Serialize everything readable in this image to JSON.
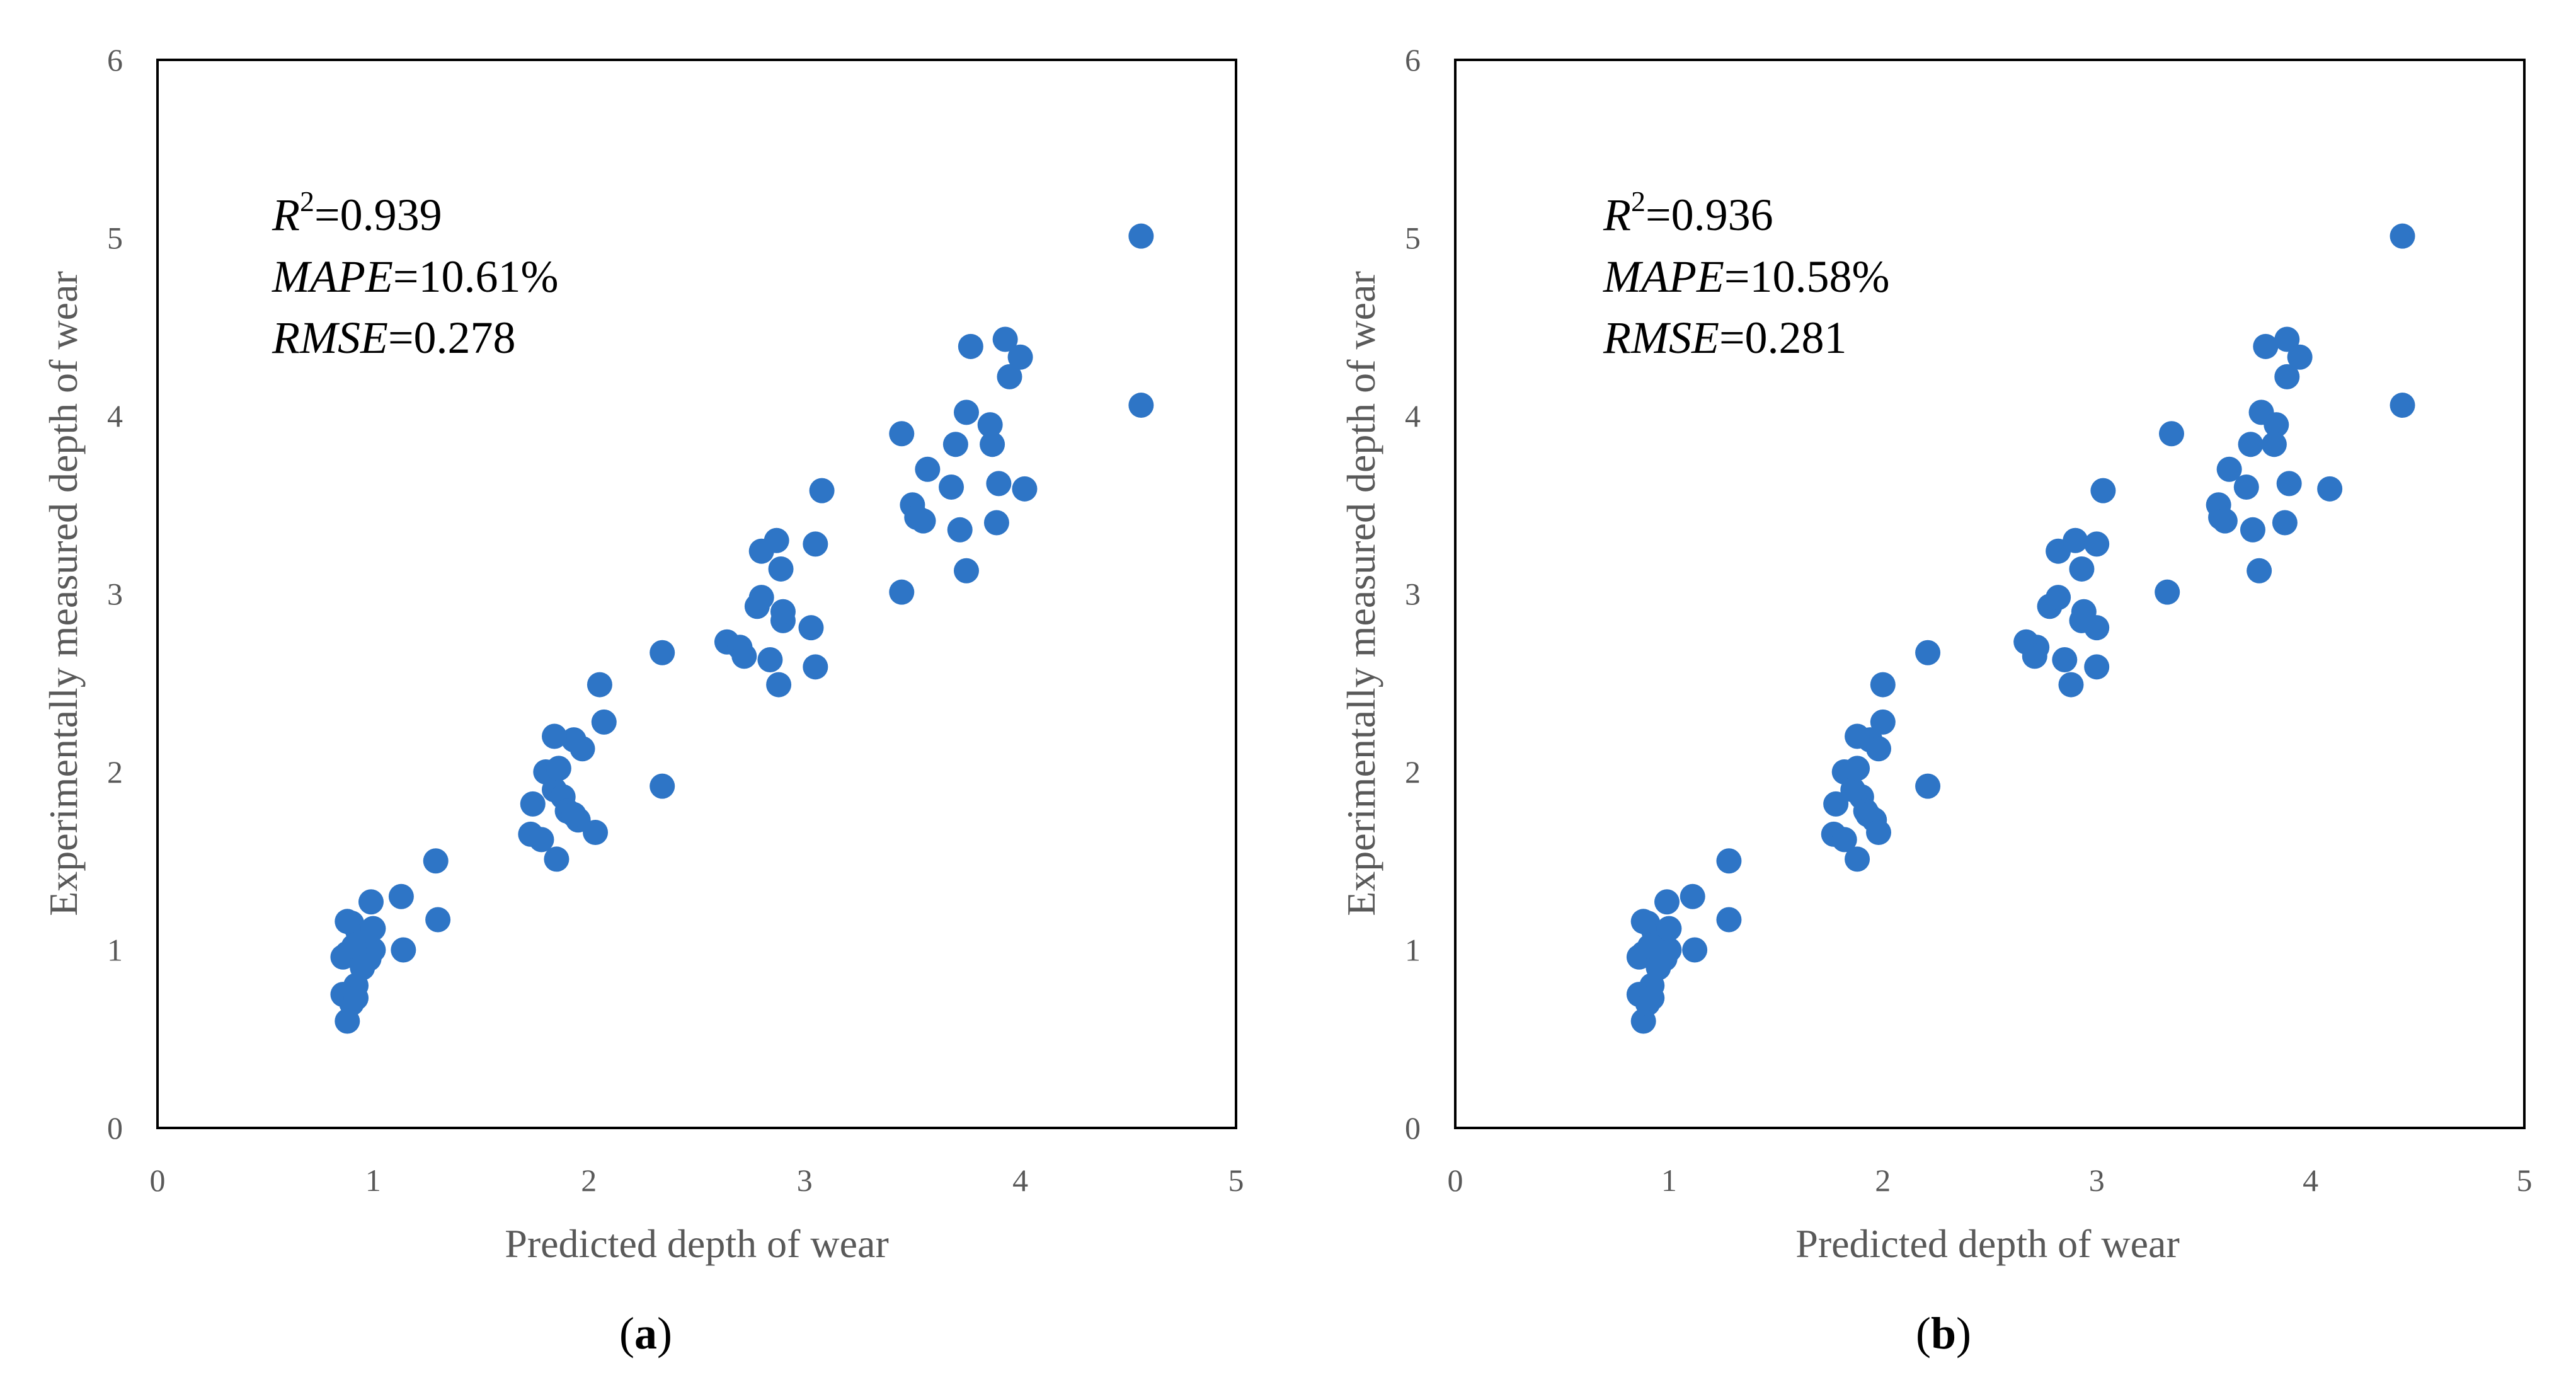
{
  "chart_data": [
    {
      "type": "scatter",
      "panel_label": "a",
      "xlabel": "Predicted depth of wear",
      "ylabel": "Experimentally measured depth of wear",
      "xlim": [
        0,
        5
      ],
      "ylim": [
        0,
        6
      ],
      "xticks": [
        "0",
        "1",
        "2",
        "3",
        "4",
        "5"
      ],
      "yticks": [
        "0",
        "1",
        "2",
        "3",
        "4",
        "5",
        "6"
      ],
      "grid": false,
      "marker_color": "#2E75C6",
      "annotations": [
        {
          "name": "R",
          "sup": "2",
          "value": "=0.939"
        },
        {
          "name": "MAPE",
          "value": "=10.61%"
        },
        {
          "name": "RMSE",
          "value": "=0.278"
        }
      ],
      "x": [
        0.88,
        0.86,
        0.9,
        0.92,
        0.95,
        0.98,
        1.0,
        0.97,
        0.93,
        0.9,
        0.88,
        0.86,
        0.91,
        0.95,
        1.0,
        0.99,
        0.92,
        0.88,
        1.14,
        1.13,
        1.29,
        1.3,
        1.74,
        1.73,
        1.78,
        1.8,
        1.84,
        1.86,
        1.88,
        1.9,
        1.93,
        1.95,
        1.97,
        1.93,
        1.85,
        1.84,
        2.03,
        2.05,
        2.07,
        2.34,
        2.34,
        2.64,
        2.7,
        2.72,
        2.78,
        2.8,
        2.8,
        2.84,
        2.87,
        2.89,
        2.9,
        2.9,
        2.88,
        3.03,
        3.05,
        3.05,
        3.08,
        3.45,
        3.45,
        3.5,
        3.52,
        3.55,
        3.57,
        3.68,
        3.7,
        3.72,
        3.75,
        3.75,
        3.77,
        3.86,
        3.87,
        3.89,
        3.9,
        3.93,
        3.95,
        4.0,
        4.02,
        4.56,
        4.56
      ],
      "y": [
        0.6,
        0.75,
        0.7,
        0.8,
        0.97,
        0.95,
        1.0,
        1.05,
        1.1,
        1.15,
        0.98,
        0.96,
        1.02,
        0.9,
        1.12,
        1.27,
        0.73,
        1.16,
        1.0,
        1.3,
        1.5,
        1.17,
        1.82,
        1.65,
        1.62,
        2.0,
        1.9,
        2.02,
        1.86,
        1.78,
        2.18,
        1.73,
        2.13,
        1.76,
        1.51,
        2.2,
        1.66,
        2.49,
        2.28,
        1.92,
        2.67,
        2.73,
        2.7,
        2.65,
        2.93,
        2.98,
        3.24,
        2.63,
        3.3,
        3.14,
        2.85,
        2.9,
        2.49,
        2.81,
        3.28,
        2.59,
        3.58,
        3.9,
        3.01,
        3.5,
        3.43,
        3.41,
        3.7,
        3.6,
        3.84,
        3.36,
        4.02,
        3.13,
        4.39,
        3.95,
        3.84,
        3.4,
        3.62,
        4.43,
        4.22,
        4.33,
        3.59,
        5.01,
        4.06
      ]
    },
    {
      "type": "scatter",
      "panel_label": "b",
      "xlabel": "Predicted depth of wear",
      "ylabel": "Experimentally measured depth of wear",
      "xlim": [
        0,
        5
      ],
      "ylim": [
        0,
        6
      ],
      "xticks": [
        "0",
        "1",
        "2",
        "3",
        "4",
        "5"
      ],
      "yticks": [
        "0",
        "1",
        "2",
        "3",
        "4",
        "5",
        "6"
      ],
      "grid": false,
      "marker_color": "#2E75C6",
      "annotations": [
        {
          "name": "R",
          "sup": "2",
          "value": "=0.936"
        },
        {
          "name": "MAPE",
          "value": "=10.58%"
        },
        {
          "name": "RMSE",
          "value": "=0.281"
        }
      ],
      "x": [
        0.88,
        0.86,
        0.9,
        0.92,
        0.95,
        0.98,
        1.0,
        0.97,
        0.93,
        0.9,
        0.88,
        0.86,
        0.91,
        0.95,
        1.0,
        0.99,
        0.92,
        0.88,
        1.12,
        1.11,
        1.28,
        1.28,
        1.78,
        1.77,
        1.82,
        1.82,
        1.86,
        1.88,
        1.9,
        1.92,
        1.94,
        1.96,
        1.98,
        1.93,
        1.88,
        1.88,
        1.98,
        2.0,
        2.0,
        2.21,
        2.21,
        2.67,
        2.72,
        2.71,
        2.78,
        2.82,
        2.82,
        2.85,
        2.9,
        2.93,
        2.93,
        2.94,
        2.88,
        3.0,
        3.0,
        3.0,
        3.03,
        3.35,
        3.33,
        3.57,
        3.58,
        3.6,
        3.62,
        3.7,
        3.72,
        3.73,
        3.77,
        3.76,
        3.79,
        3.84,
        3.83,
        3.88,
        3.9,
        3.89,
        3.89,
        3.95,
        4.09,
        4.43,
        4.43
      ],
      "y": [
        0.6,
        0.75,
        0.7,
        0.8,
        0.97,
        0.95,
        1.0,
        1.05,
        1.1,
        1.15,
        0.98,
        0.96,
        1.02,
        0.9,
        1.12,
        1.27,
        0.73,
        1.16,
        1.0,
        1.3,
        1.5,
        1.17,
        1.82,
        1.65,
        1.62,
        2.0,
        1.9,
        2.02,
        1.86,
        1.78,
        2.18,
        1.73,
        2.13,
        1.76,
        1.51,
        2.2,
        1.66,
        2.49,
        2.28,
        1.92,
        2.67,
        2.73,
        2.7,
        2.65,
        2.93,
        2.98,
        3.24,
        2.63,
        3.3,
        3.14,
        2.85,
        2.9,
        2.49,
        2.81,
        3.28,
        2.59,
        3.58,
        3.9,
        3.01,
        3.5,
        3.43,
        3.41,
        3.7,
        3.6,
        3.84,
        3.36,
        4.02,
        3.13,
        4.39,
        3.95,
        3.84,
        3.4,
        3.62,
        4.43,
        4.22,
        4.33,
        3.59,
        5.01,
        4.06
      ]
    }
  ]
}
